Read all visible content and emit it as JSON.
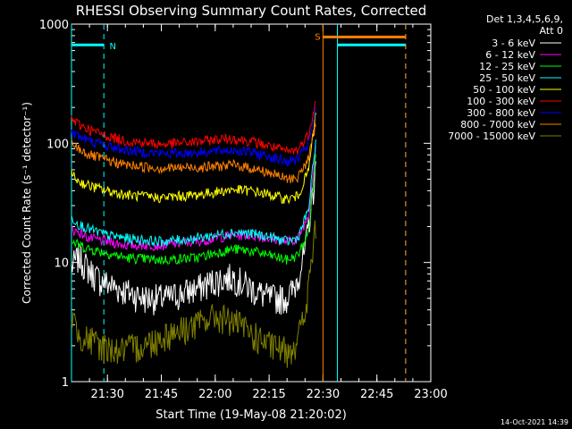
{
  "chart_data": {
    "type": "line",
    "title": "RHESSI Observing Summary Count Rates, Corrected",
    "xlabel": "Start Time (19-May-08 21:20:02)",
    "ylabel": "Corrected Count Rate (s⁻¹ detector⁻¹)",
    "yscale": "log",
    "xlim": [
      "21:20",
      "23:00"
    ],
    "ylim": [
      1,
      1000
    ],
    "x_ticks": [
      "21:30",
      "21:45",
      "22:00",
      "22:15",
      "22:30",
      "22:45",
      "23:00"
    ],
    "y_ticks": [
      "1",
      "10",
      "100",
      "1000"
    ],
    "grid": false,
    "legend_position": "top-right",
    "legend_header": [
      "Det 1,3,4,5,6,9,",
      "Att 0"
    ],
    "footer": "14-Oct-2021 14:39",
    "markers": [
      {
        "label": "N",
        "color": "#00ffff",
        "type": "night",
        "start": "21:20",
        "end": "21:29"
      },
      {
        "label": "",
        "color": "#00ffff",
        "type": "night",
        "start": "22:34",
        "end": "22:53"
      },
      {
        "label": "S",
        "color": "#ff8000",
        "type": "saa",
        "start": "22:30",
        "end": "22:53"
      }
    ],
    "series": [
      {
        "name": "3 - 6 keV",
        "color": "#ffffff",
        "time": [
          "21:20",
          "21:22",
          "21:25",
          "21:28",
          "21:33",
          "21:40",
          "21:47",
          "21:55",
          "22:00",
          "22:05",
          "22:10",
          "22:15",
          "22:20",
          "22:22",
          "22:25",
          "22:28"
        ],
        "values": [
          9,
          11,
          8.5,
          7,
          6,
          5,
          5,
          6,
          7,
          7.5,
          6,
          5,
          5,
          6,
          12,
          60
        ]
      },
      {
        "name": "6 - 12 keV",
        "color": "#ff00ff",
        "time": [
          "21:20",
          "21:22",
          "21:25",
          "21:30",
          "21:35",
          "21:45",
          "21:55",
          "22:00",
          "22:05",
          "22:10",
          "22:15",
          "22:20",
          "22:23",
          "22:26",
          "22:28"
        ],
        "values": [
          19,
          18,
          16,
          15,
          14,
          14,
          15,
          16,
          17,
          17,
          16,
          15,
          16,
          25,
          100
        ]
      },
      {
        "name": "12 - 25 keV",
        "color": "#00ff00",
        "time": [
          "21:20",
          "21:22",
          "21:25",
          "21:30",
          "21:35",
          "21:45",
          "21:55",
          "22:00",
          "22:05",
          "22:10",
          "22:15",
          "22:20",
          "22:23",
          "22:26",
          "22:28"
        ],
        "values": [
          15,
          14,
          13,
          12,
          11,
          10.5,
          11,
          12,
          13,
          12.5,
          11.5,
          10.5,
          11.5,
          18,
          80
        ]
      },
      {
        "name": "25 - 50 keV",
        "color": "#00ffff",
        "time": [
          "21:20",
          "21:22",
          "21:25",
          "21:30",
          "21:35",
          "21:45",
          "21:55",
          "22:00",
          "22:05",
          "22:10",
          "22:15",
          "22:20",
          "22:23",
          "22:26",
          "22:28"
        ],
        "values": [
          24,
          21,
          19,
          17,
          16,
          15,
          16,
          17,
          18,
          17.5,
          16.5,
          15,
          16,
          28,
          110
        ]
      },
      {
        "name": "50 - 100 keV",
        "color": "#ffff00",
        "time": [
          "21:20",
          "21:22",
          "21:25",
          "21:30",
          "21:35",
          "21:45",
          "21:55",
          "22:00",
          "22:05",
          "22:10",
          "22:15",
          "22:20",
          "22:23",
          "22:26",
          "22:28"
        ],
        "values": [
          55,
          48,
          44,
          40,
          37,
          35,
          37,
          39,
          41,
          40,
          37,
          34,
          36,
          60,
          180
        ]
      },
      {
        "name": "100 - 300 keV",
        "color": "#ff0000",
        "time": [
          "21:20",
          "21:22",
          "21:25",
          "21:30",
          "21:35",
          "21:45",
          "21:55",
          "22:00",
          "22:05",
          "22:10",
          "22:15",
          "22:20",
          "22:23",
          "22:26",
          "22:28"
        ],
        "values": [
          160,
          145,
          130,
          115,
          105,
          98,
          103,
          108,
          110,
          104,
          95,
          85,
          88,
          120,
          230
        ]
      },
      {
        "name": "300 - 800 keV",
        "color": "#0000ff",
        "time": [
          "21:20",
          "21:22",
          "21:25",
          "21:30",
          "21:35",
          "21:45",
          "21:55",
          "22:00",
          "22:05",
          "22:10",
          "22:15",
          "22:20",
          "22:23",
          "22:26",
          "22:28"
        ],
        "values": [
          125,
          115,
          105,
          95,
          88,
          82,
          84,
          86,
          88,
          84,
          78,
          70,
          74,
          100,
          190
        ]
      },
      {
        "name": "800 - 7000 keV",
        "color": "#ff8000",
        "time": [
          "21:20",
          "21:22",
          "21:25",
          "21:30",
          "21:35",
          "21:45",
          "21:55",
          "22:00",
          "22:05",
          "22:10",
          "22:15",
          "22:20",
          "22:23",
          "22:26",
          "22:28"
        ],
        "values": [
          100,
          90,
          80,
          72,
          66,
          62,
          63,
          64,
          66,
          62,
          57,
          50,
          52,
          75,
          150
        ]
      },
      {
        "name": "7000 - 15000 keV",
        "color": "#808000",
        "time": [
          "21:20",
          "21:22",
          "21:25",
          "21:28",
          "21:33",
          "21:40",
          "21:47",
          "21:55",
          "22:00",
          "22:05",
          "22:10",
          "22:15",
          "22:20",
          "22:22",
          "22:25",
          "22:28"
        ],
        "values": [
          3.5,
          2.5,
          2.2,
          2,
          1.8,
          2,
          2.5,
          3,
          3.5,
          3.2,
          2.5,
          2,
          1.8,
          2,
          3.5,
          20
        ]
      }
    ]
  }
}
